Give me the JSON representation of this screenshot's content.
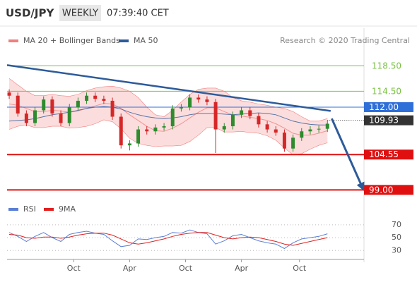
{
  "header": {
    "symbol": "USD/JPY",
    "timeframe": "WEEKLY",
    "time": "07:39:40 CET"
  },
  "chart_data": [
    {
      "type": "candlestick",
      "source": "Research © 2020 Trading Central",
      "x": [
        1,
        5,
        9,
        13,
        17,
        21,
        25,
        29,
        33,
        37,
        41,
        45,
        49,
        53,
        57,
        61,
        65,
        69,
        73,
        77,
        81,
        85,
        89,
        93,
        97,
        101,
        105,
        109,
        113,
        117,
        121,
        125,
        129,
        133,
        137,
        141,
        145,
        149
      ],
      "open": [
        114.3,
        113.8,
        111.0,
        109.5,
        111.5,
        113.2,
        111.0,
        109.5,
        112.0,
        113.0,
        113.8,
        113.3,
        113.0,
        110.5,
        106.0,
        106.3,
        108.5,
        108.2,
        108.8,
        109.0,
        111.8,
        112.0,
        113.5,
        113.2,
        112.8,
        108.5,
        109.0,
        110.8,
        111.5,
        110.6,
        109.3,
        108.5,
        108.0,
        105.5,
        107.2,
        108.2,
        108.5,
        108.6
      ],
      "high": [
        114.8,
        114.3,
        111.5,
        112.0,
        113.7,
        113.7,
        111.5,
        112.5,
        113.5,
        114.3,
        114.3,
        113.8,
        113.5,
        111.0,
        106.8,
        109.0,
        109.0,
        109.3,
        109.5,
        112.3,
        112.5,
        114.0,
        114.0,
        113.7,
        113.3,
        109.5,
        111.3,
        112.0,
        112.0,
        111.1,
        109.8,
        109.0,
        108.5,
        107.7,
        108.7,
        109.0,
        109.1,
        109.9
      ],
      "low": [
        113.3,
        110.5,
        109.0,
        109.0,
        111.0,
        110.5,
        109.0,
        109.0,
        111.5,
        112.5,
        112.8,
        112.5,
        110.0,
        105.5,
        105.2,
        105.8,
        107.7,
        107.7,
        108.3,
        108.5,
        111.3,
        111.5,
        112.7,
        112.3,
        104.8,
        108.0,
        108.5,
        110.3,
        110.1,
        108.8,
        108.0,
        107.5,
        105.0,
        105.0,
        106.7,
        107.7,
        108.0,
        108.1
      ],
      "close": [
        113.8,
        111.0,
        109.5,
        111.5,
        113.2,
        111.0,
        109.5,
        112.0,
        113.0,
        113.8,
        113.3,
        113.0,
        110.5,
        106.0,
        106.3,
        108.5,
        108.2,
        108.8,
        109.0,
        111.8,
        112.0,
        113.5,
        113.2,
        112.8,
        108.5,
        109.0,
        110.8,
        111.5,
        110.6,
        109.3,
        108.5,
        108.0,
        105.5,
        107.2,
        108.2,
        108.5,
        108.6,
        109.4
      ],
      "candle_colors": {
        "up": "#2e8b2e",
        "down": "#d62728"
      },
      "series": [
        {
          "name": "MA 20 + Bollinger Bands",
          "color": "#f07f7f",
          "band_color": "#fbd5d5",
          "values": [
            112.5,
            112.3,
            111.8,
            111.3,
            111.3,
            111.5,
            111.4,
            111.2,
            111.4,
            111.8,
            112.2,
            112.6,
            112.5,
            111.8,
            110.8,
            109.9,
            109.0,
            108.3,
            108.2,
            108.7,
            109.4,
            110.3,
            111.2,
            111.9,
            111.9,
            111.3,
            110.8,
            110.6,
            110.4,
            110.2,
            109.9,
            109.4,
            108.7,
            107.9,
            107.6,
            107.6,
            107.9,
            108.3
          ],
          "upper": [
            116.5,
            115.5,
            114.5,
            113.8,
            113.8,
            114.0,
            113.8,
            113.7,
            114.0,
            114.6,
            115.0,
            115.2,
            115.3,
            115.0,
            114.5,
            113.5,
            112.0,
            110.8,
            110.5,
            111.5,
            112.8,
            114.0,
            114.8,
            115.0,
            115.0,
            114.5,
            113.5,
            113.0,
            112.8,
            112.5,
            112.3,
            112.0,
            111.8,
            111.3,
            110.5,
            109.8,
            109.8,
            110.2
          ],
          "lower": [
            108.5,
            109.0,
            109.2,
            108.8,
            108.8,
            109.0,
            109.0,
            108.7,
            108.8,
            109.0,
            109.4,
            110.0,
            109.7,
            108.6,
            107.1,
            106.3,
            106.0,
            105.8,
            105.9,
            105.9,
            106.0,
            106.6,
            107.6,
            108.8,
            108.8,
            108.1,
            108.1,
            108.2,
            108.0,
            107.9,
            107.5,
            106.8,
            105.6,
            104.5,
            104.7,
            105.4,
            106.0,
            106.4
          ]
        },
        {
          "name": "MA 50",
          "color": "#2d5b9a",
          "values": [
            109.8,
            109.9,
            110.0,
            110.2,
            110.5,
            110.8,
            111.0,
            111.2,
            111.5,
            111.8,
            112.0,
            112.1,
            112.0,
            111.7,
            111.2,
            110.8,
            110.5,
            110.3,
            110.2,
            110.3,
            110.5,
            110.8,
            111.0,
            111.0,
            111.0,
            110.9,
            110.8,
            110.9,
            111.0,
            111.1,
            111.0,
            110.8,
            110.3,
            109.8,
            109.5,
            109.3,
            109.2,
            109.2
          ]
        }
      ],
      "trendline": {
        "x": [
          0,
          150.5
        ],
        "values": [
          118.6,
          111.4
        ],
        "color": "#2d5b9a"
      },
      "forecast": {
        "x": [
          151,
          165.5
        ],
        "values": [
          110.2,
          99.2
        ],
        "color": "#2d5b9a"
      },
      "levels": [
        {
          "value": 118.5,
          "label": "118.50",
          "color": "#7ac143",
          "style": "line",
          "tag": "text"
        },
        {
          "value": 114.5,
          "label": "114.50",
          "color": "#7ac143",
          "style": "line",
          "tag": "text"
        },
        {
          "value": 112.0,
          "label": "112.00",
          "color": "#2f6fd8",
          "style": "line",
          "tag": "box"
        },
        {
          "value": 109.93,
          "label": "109.93",
          "color": "#333333",
          "style": "dotted",
          "tag": "box"
        },
        {
          "value": 104.55,
          "label": "104.55",
          "color": "#e01010",
          "style": "line",
          "tag": "box"
        },
        {
          "value": 99.0,
          "label": "99.00",
          "color": "#e01010",
          "style": "line",
          "tag": "box"
        }
      ],
      "xlim": [
        0,
        166
      ],
      "ylim": [
        97.6,
        121.3
      ]
    },
    {
      "type": "line",
      "x": [
        1,
        5,
        9,
        13,
        17,
        21,
        25,
        29,
        33,
        37,
        41,
        45,
        49,
        53,
        57,
        61,
        65,
        69,
        73,
        77,
        81,
        85,
        89,
        93,
        97,
        101,
        105,
        109,
        113,
        117,
        121,
        125,
        129,
        133,
        137,
        141,
        145,
        149
      ],
      "series": [
        {
          "name": "RSI",
          "color": "#5b7fd6",
          "values": [
            58,
            52,
            44,
            52,
            58,
            50,
            44,
            55,
            58,
            60,
            57,
            55,
            45,
            36,
            38,
            48,
            47,
            50,
            52,
            58,
            57,
            62,
            58,
            56,
            40,
            45,
            53,
            55,
            50,
            45,
            42,
            40,
            33,
            42,
            48,
            50,
            52,
            56
          ]
        },
        {
          "name": "9MA",
          "color": "#e02020",
          "values": [
            55,
            54,
            50,
            49,
            51,
            51,
            49,
            51,
            54,
            56,
            57,
            57,
            54,
            48,
            42,
            40,
            42,
            45,
            48,
            52,
            55,
            57,
            58,
            58,
            54,
            50,
            48,
            50,
            51,
            50,
            47,
            44,
            40,
            38,
            41,
            44,
            47,
            50
          ]
        }
      ],
      "xlim": [
        0,
        166
      ],
      "ylim": [
        16,
        82
      ],
      "yticks": [
        30,
        50,
        70
      ],
      "grid": "dotted",
      "xticks": [
        {
          "value": 31,
          "label": "Oct"
        },
        {
          "value": 57,
          "label": "Apr"
        },
        {
          "value": 83,
          "label": "Oct"
        },
        {
          "value": 109,
          "label": "Apr"
        },
        {
          "value": 136,
          "label": "Oct"
        }
      ]
    }
  ]
}
